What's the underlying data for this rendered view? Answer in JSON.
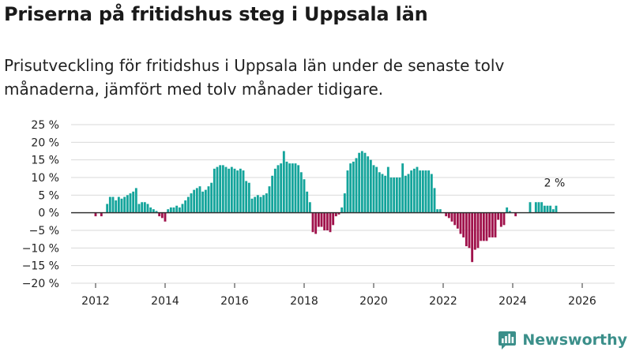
{
  "header": {
    "title": "Priserna på fritidshus steg i Uppsala län",
    "subtitle": "Prisutveckling för fritidshus i Uppsala län under de senaste tolv månaderna, jämfört med tolv månader tidigare."
  },
  "brand": {
    "name": "Newsworthy",
    "icon": "newsworthy-logo-icon"
  },
  "colors": {
    "positive": "#14a49b",
    "negative": "#a0124b",
    "grid": "#d9d9d9",
    "zero": "#333333"
  },
  "chart_data": {
    "type": "bar",
    "title": "Priserna på fritidshus steg i Uppsala län",
    "ylabel": "",
    "xlabel": "",
    "ylim": [
      -20,
      25
    ],
    "yticks": [
      25,
      20,
      15,
      10,
      5,
      0,
      -5,
      -10,
      -15,
      -20
    ],
    "ytick_labels": [
      "25 %",
      "20 %",
      "15 %",
      "10 %",
      "5 %",
      "0 %",
      "−5 %",
      "−10 %",
      "−15 %",
      "−20 %"
    ],
    "xticks": [
      2012,
      2014,
      2016,
      2018,
      2020,
      2022,
      2024,
      2026
    ],
    "xtick_labels": [
      "2012",
      "2014",
      "2016",
      "2018",
      "2020",
      "2022",
      "2024",
      "2026"
    ],
    "start": {
      "year": 2012,
      "month": 1
    },
    "annotation": {
      "text": "2 %",
      "value": 2
    },
    "values": [
      -1,
      0,
      -1,
      0,
      2.5,
      4.5,
      4.5,
      3.5,
      4.5,
      4,
      4.5,
      5,
      5.5,
      6,
      7,
      2.5,
      3,
      3,
      2.5,
      1.5,
      1,
      0.5,
      -1,
      -1.5,
      -2.5,
      1,
      1.5,
      1.5,
      2,
      1.5,
      2.5,
      3.5,
      4.5,
      5.5,
      6.5,
      7,
      7.5,
      6,
      6.5,
      7.5,
      8.5,
      12.5,
      13,
      13.5,
      13.5,
      13,
      12.5,
      13,
      12.5,
      12,
      12.5,
      12,
      9,
      8.5,
      4,
      4.5,
      5,
      4.5,
      5,
      5.5,
      7.5,
      10.5,
      12.5,
      13.5,
      14,
      17.5,
      14.5,
      14,
      14,
      14,
      13.5,
      11.5,
      9.5,
      6,
      3,
      -5.5,
      -6,
      -4,
      -4,
      -5,
      -5,
      -5.5,
      -3.5,
      -1,
      -0.5,
      1.5,
      5.5,
      12,
      14,
      14.5,
      15.5,
      17,
      17.5,
      17,
      16,
      15,
      13.5,
      13,
      11.5,
      11,
      10.5,
      13,
      10,
      10,
      10,
      10,
      14,
      10.5,
      11,
      12,
      12.5,
      13,
      12,
      12,
      12,
      12,
      11,
      7,
      1,
      1,
      0,
      -1,
      -1.5,
      -2.5,
      -3.5,
      -4.5,
      -6,
      -7,
      -9.5,
      -10,
      -14,
      -10.5,
      -10,
      -8,
      -8,
      -8,
      -7,
      -7,
      -7,
      -2,
      -4,
      -3.5,
      1.5,
      0.5,
      0,
      -1,
      0,
      0,
      0,
      0,
      3,
      0,
      3,
      3,
      3,
      2,
      2,
      2,
      1,
      2
    ]
  }
}
